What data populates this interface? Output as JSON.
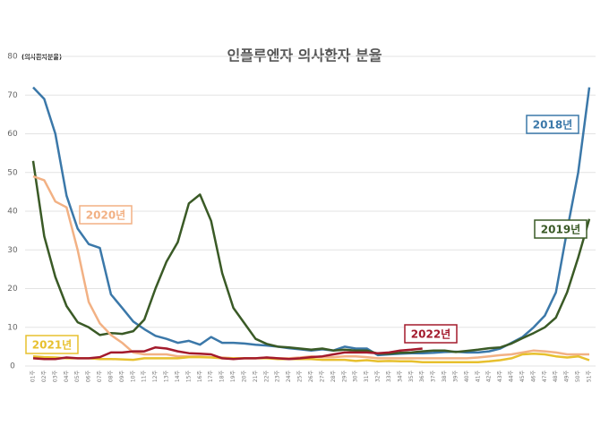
{
  "chart_data": {
    "type": "line",
    "title": "인플루엔자 의사환자 분율",
    "ylabel": "(의사환자분율)",
    "categories": [
      "01주",
      "02주",
      "03주",
      "04주",
      "05주",
      "06주",
      "07주",
      "08주",
      "09주",
      "10주",
      "11주",
      "12주",
      "13주",
      "14주",
      "15주",
      "16주",
      "17주",
      "18주",
      "19주",
      "20주",
      "21주",
      "22주",
      "23주",
      "24주",
      "25주",
      "26주",
      "27주",
      "28주",
      "29주",
      "30주",
      "31주",
      "32주",
      "33주",
      "34주",
      "35주",
      "36주",
      "37주",
      "38주",
      "39주",
      "40주",
      "41주",
      "42주",
      "43주",
      "44주",
      "45주",
      "46주",
      "47주",
      "48주",
      "49주",
      "50주",
      "51주"
    ],
    "ylim": [
      0,
      80
    ],
    "yticks": [
      0,
      10,
      20,
      30,
      40,
      50,
      60,
      70,
      80
    ],
    "grid": true,
    "series": [
      {
        "name": "2018년",
        "color": "#3b78a9",
        "values": [
          72,
          69,
          60,
          44,
          35.5,
          31.5,
          30.5,
          18.5,
          15,
          11.5,
          9.5,
          7.8,
          7,
          6,
          6.5,
          5.5,
          7.5,
          6,
          6,
          5.8,
          5.5,
          5.3,
          5,
          4.6,
          4.3,
          4,
          4.3,
          4,
          5,
          4.5,
          4.5,
          2.8,
          3,
          3.2,
          3.3,
          3.3,
          3.4,
          3.6,
          3.7,
          3.5,
          3.5,
          3.8,
          4.5,
          6,
          7.5,
          10,
          13,
          19,
          35,
          50,
          72
        ]
      },
      {
        "name": "2019년",
        "color": "#3a5a26",
        "values": [
          53,
          33.5,
          23,
          15.5,
          11.3,
          10,
          8,
          8.5,
          8.3,
          9,
          12,
          20,
          27,
          32,
          42,
          44.3,
          37.5,
          24,
          15,
          11,
          7,
          5.7,
          5,
          4.8,
          4.5,
          4.2,
          4.5,
          4,
          4.2,
          4,
          4,
          3.2,
          3.2,
          3.4,
          3.5,
          3.8,
          4,
          4,
          3.6,
          3.9,
          4.2,
          4.6,
          4.8,
          5.8,
          7.2,
          8.5,
          10,
          12.5,
          19,
          28,
          38
        ]
      },
      {
        "name": "2020년",
        "color": "#f2b184",
        "values": [
          49,
          48,
          42.5,
          41,
          30,
          16.5,
          11,
          8,
          6,
          3.5,
          3,
          3,
          3,
          2.5,
          2.5,
          2.5,
          2.3,
          2.2,
          2,
          2,
          2,
          2.2,
          2,
          2,
          2.2,
          2.5,
          2.3,
          2.3,
          2.5,
          2.5,
          2.3,
          2,
          2,
          2,
          2,
          2,
          2,
          2,
          2,
          2,
          2.2,
          2.5,
          2.8,
          3,
          3.5,
          4,
          3.8,
          3.5,
          3,
          3,
          3
        ]
      },
      {
        "name": "2021년",
        "color": "#e7c02e",
        "values": [
          2.5,
          2.3,
          2.2,
          2,
          2,
          2,
          1.8,
          1.8,
          1.7,
          1.6,
          2,
          2,
          2,
          2,
          2.3,
          2.3,
          2.2,
          2,
          2,
          2,
          2,
          2,
          1.8,
          1.8,
          1.8,
          1.8,
          1.6,
          1.6,
          1.6,
          1.3,
          1.5,
          1.2,
          1.3,
          1.2,
          1.2,
          1,
          1,
          1,
          1,
          1,
          1,
          1.2,
          1.5,
          2,
          3,
          3.2,
          3,
          2.5,
          2.2,
          2.5,
          1.5
        ]
      },
      {
        "name": "2022년",
        "color": "#a31a2c",
        "values": [
          2,
          1.8,
          1.8,
          2.2,
          2,
          2,
          2.3,
          3.5,
          3.5,
          3.8,
          3.8,
          4.8,
          4.5,
          3.8,
          3.3,
          3.2,
          3,
          2,
          1.8,
          2,
          2,
          2.2,
          2,
          1.8,
          2,
          2.3,
          2.5,
          3,
          3.5,
          3.5,
          3.5,
          3.3,
          3.5,
          4,
          4.2,
          4.5,
          null,
          null,
          null,
          null,
          null,
          null,
          null,
          null,
          null,
          null,
          null,
          null,
          null,
          null,
          null
        ]
      }
    ]
  }
}
